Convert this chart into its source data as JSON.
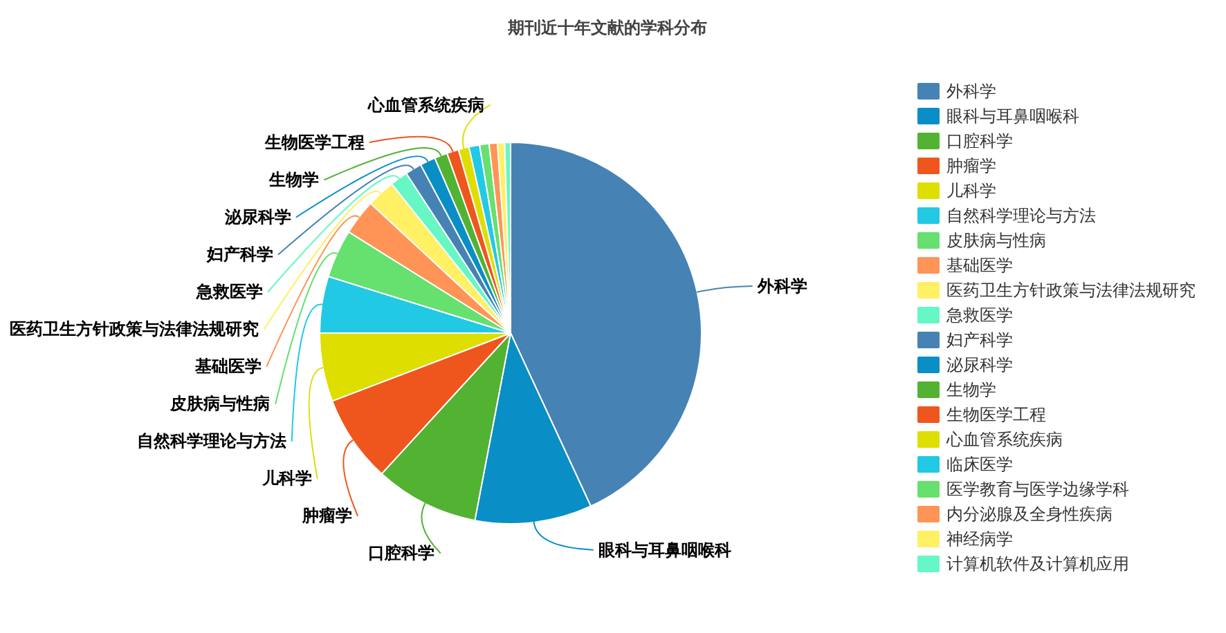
{
  "chart_data": {
    "type": "pie",
    "title": "期刊近十年文献的学科分布",
    "categories": [
      "外科学",
      "眼科与耳鼻咽喉科",
      "口腔科学",
      "肿瘤学",
      "儿科学",
      "自然科学理论与方法",
      "皮肤病与性病",
      "基础医学",
      "医药卫生方针政策与法律法规研究",
      "急救医学",
      "妇产科学",
      "泌尿科学",
      "生物学",
      "生物医学工程",
      "心血管系统疾病",
      "临床医学",
      "医学教育与医学边缘学科",
      "内分泌腺及全身性疾病",
      "神经病学",
      "计算机软件及计算机应用"
    ],
    "values": [
      43.1,
      9.9,
      8.8,
      7.4,
      5.8,
      4.8,
      4.1,
      3.0,
      2.4,
      1.5,
      1.4,
      1.3,
      1.1,
      1.0,
      0.9,
      0.9,
      0.8,
      0.7,
      0.6,
      0.5
    ],
    "colors": [
      "#4682b4",
      "#0a8ec6",
      "#52b232",
      "#ee561e",
      "#dede00",
      "#22c9e4",
      "#66e06e",
      "#ff9456",
      "#fff064",
      "#66f7c4",
      "#4682b4",
      "#0a8ec6",
      "#52b232",
      "#ee561e",
      "#dede00",
      "#22c9e4",
      "#66e06e",
      "#ff9456",
      "#fff064",
      "#66f7c4"
    ],
    "value_labels": [
      "外科学",
      "眼科与耳鼻咽喉科",
      "口腔科学",
      "肿瘤学",
      "儿科学",
      "自然科学理论与方法",
      "皮肤病与性病",
      "基础医学",
      "医药卫生方针政策与法律法规研究",
      "急救医学",
      "妇产科学",
      "泌尿科学",
      "生物学",
      "生物医学工程",
      "心血管系统疾病",
      null,
      null,
      null,
      null,
      null
    ],
    "legend": "right"
  }
}
